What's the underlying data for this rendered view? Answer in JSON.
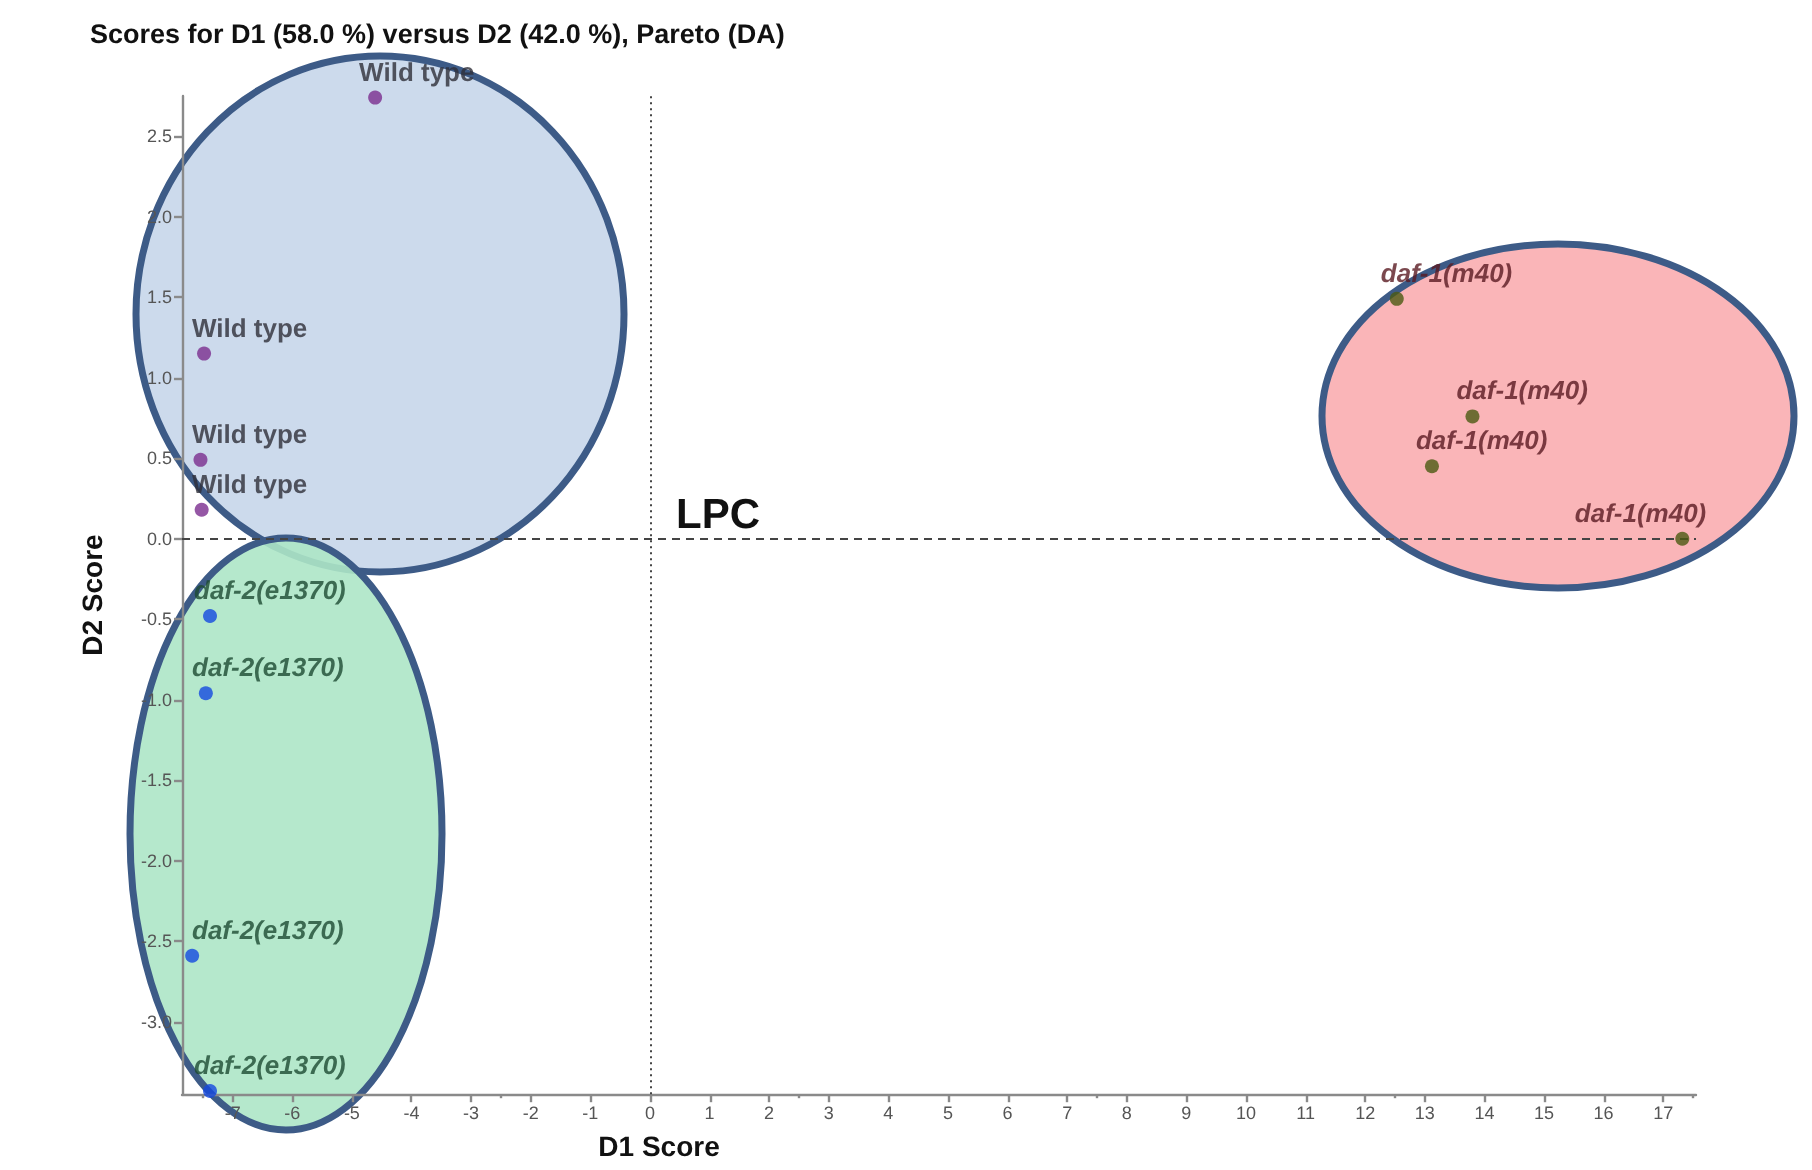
{
  "chart_data": {
    "type": "scatter",
    "title": "Scores for D1 (58.0 %) versus D2 (42.0 %), Pareto (DA)",
    "xlabel": "D1 Score",
    "ylabel": "D2 Score",
    "annotations": [
      "LPC"
    ],
    "series": [
      {
        "name": "Wild type",
        "color": "#7b2d8e",
        "x": [
          -4.61,
          -7.48,
          -7.54,
          -7.52
        ],
        "values": [
          2.74,
          1.15,
          0.49,
          0.18
        ]
      },
      {
        "name": "daf-2(e1370)",
        "color": "#1448e0",
        "x": [
          -7.38,
          -7.45,
          -7.68,
          -7.38
        ],
        "values": [
          -0.48,
          -0.96,
          -2.59,
          -3.43
        ]
      },
      {
        "name": "daf-1(m40)",
        "color": "#4b5a12",
        "x": [
          12.53,
          13.8,
          13.12,
          17.32
        ],
        "values": [
          1.49,
          0.76,
          0.45,
          0.0
        ]
      }
    ],
    "xlim": [
      -7.85,
      17.55
    ],
    "xticks": [
      -7,
      -6,
      -5,
      -4,
      -3,
      -2,
      -1,
      0,
      1,
      2,
      3,
      4,
      5,
      6,
      7,
      8,
      9,
      10,
      11,
      12,
      13,
      14,
      15,
      16,
      17
    ],
    "ylim": [
      -3.45,
      2.75
    ],
    "yticks": [
      {
        "value": -3,
        "label": "-3.0"
      },
      -2.5,
      {
        "value": -2,
        "label": "-2.0"
      },
      -1.5,
      {
        "value": -1,
        "label": "-1.0"
      },
      -0.5,
      {
        "value": 0,
        "label": "0.0"
      },
      0.5,
      {
        "value": 1,
        "label": "1.0"
      },
      1.5,
      {
        "value": 2,
        "label": "2.0"
      },
      2.5
    ],
    "ref_lines": [
      {
        "axis": "x",
        "value": 0,
        "line_style": "dotted",
        "color": "#444444"
      },
      {
        "axis": "y",
        "value": 0,
        "line_style": "dashed",
        "color": "#444444"
      }
    ],
    "marker": "circle"
  }
}
